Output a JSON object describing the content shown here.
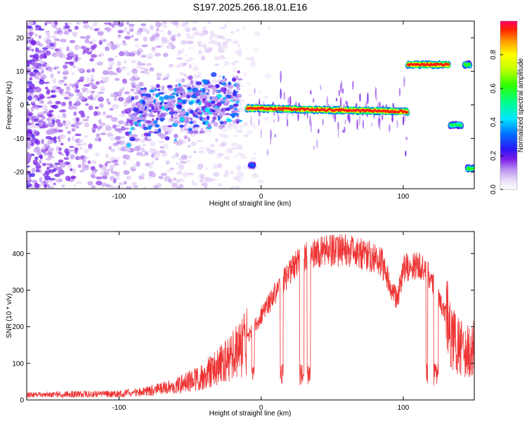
{
  "figure": {
    "title": "S197.2025.266.18.01.E16"
  },
  "chart_data": [
    {
      "type": "heatmap",
      "xlabel": "Height of straight line (km)",
      "ylabel": "Frequency (Hz)",
      "xlim": [
        -165,
        150
      ],
      "ylim": [
        -25,
        25
      ],
      "xticks": [
        -100,
        0,
        100
      ],
      "yticks": [
        -20,
        -10,
        0,
        10,
        20
      ],
      "ridge_segments": [
        {
          "x0": -10,
          "x1": 103,
          "f0": -1,
          "f1": -2,
          "amp": 0.95
        },
        {
          "x0": 103,
          "x1": 132,
          "f": 12,
          "amp": 0.95
        },
        {
          "x0": 133,
          "x1": 141,
          "f": -6,
          "amp": 0.55
        },
        {
          "x0": 143,
          "x1": 147,
          "f": 12,
          "amp": 0.6
        },
        {
          "x0": 145,
          "x1": 150,
          "f": -19,
          "amp": 0.6
        },
        {
          "x0": -8,
          "x1": -5,
          "f": -18,
          "amp": 0.3
        }
      ],
      "colorbar": {
        "label": "Normalized spectral amplitude",
        "range": [
          0,
          1
        ],
        "ticks": [
          0.0,
          0.2,
          0.4,
          0.6,
          0.8
        ]
      }
    },
    {
      "type": "line",
      "xlabel": "Height of straight line (km)",
      "ylabel": "SNR (10 * v/v)",
      "xlim": [
        -165,
        150
      ],
      "ylim": [
        0,
        460
      ],
      "xticks": [
        -100,
        0,
        100
      ],
      "yticks": [
        0,
        100,
        200,
        300,
        400
      ],
      "color": "#ee3333",
      "envelope": [
        {
          "x": -165,
          "y": 15
        },
        {
          "x": -100,
          "y": 18
        },
        {
          "x": -80,
          "y": 25
        },
        {
          "x": -60,
          "y": 40
        },
        {
          "x": -40,
          "y": 70
        },
        {
          "x": -25,
          "y": 110
        },
        {
          "x": -10,
          "y": 170
        },
        {
          "x": 0,
          "y": 230
        },
        {
          "x": 10,
          "y": 290
        },
        {
          "x": 20,
          "y": 350
        },
        {
          "x": 30,
          "y": 390
        },
        {
          "x": 45,
          "y": 405
        },
        {
          "x": 60,
          "y": 410
        },
        {
          "x": 75,
          "y": 395
        },
        {
          "x": 85,
          "y": 375
        },
        {
          "x": 92,
          "y": 300
        },
        {
          "x": 96,
          "y": 270
        },
        {
          "x": 100,
          "y": 360
        },
        {
          "x": 110,
          "y": 370
        },
        {
          "x": 118,
          "y": 340
        },
        {
          "x": 125,
          "y": 280
        },
        {
          "x": 130,
          "y": 230
        },
        {
          "x": 135,
          "y": 180
        },
        {
          "x": 140,
          "y": 150
        },
        {
          "x": 145,
          "y": 140
        },
        {
          "x": 150,
          "y": 150
        }
      ]
    }
  ]
}
